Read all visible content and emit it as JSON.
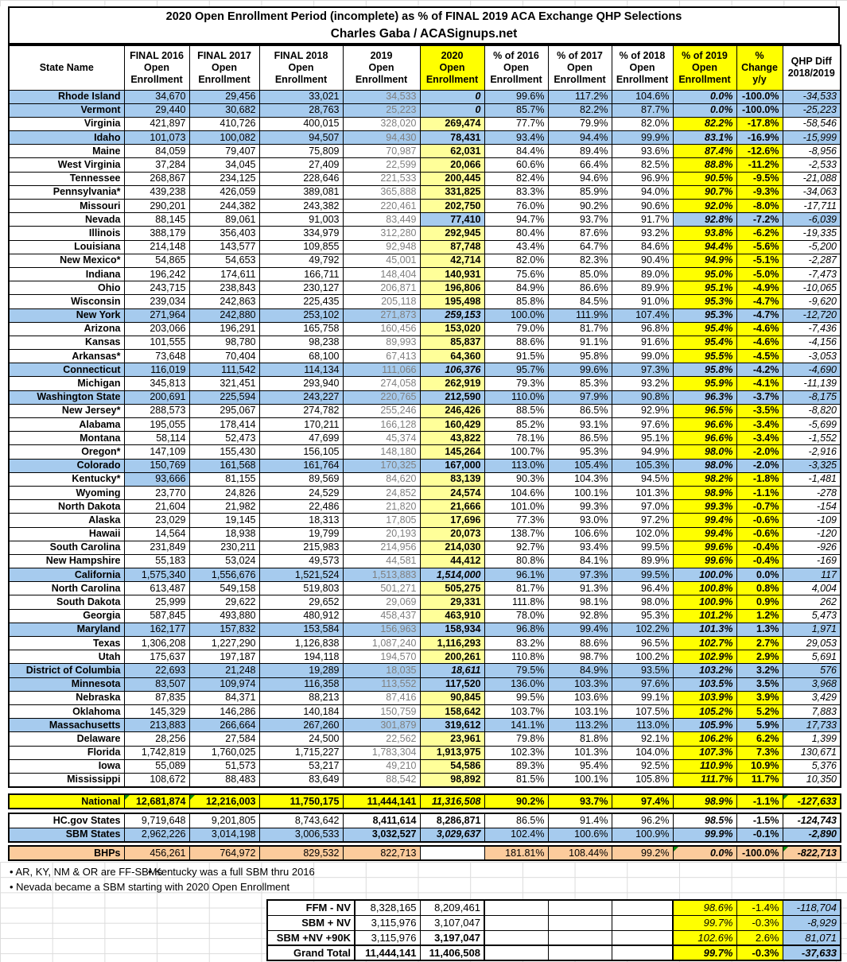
{
  "title": {
    "line1": "2020 Open Enrollment Period (incomplete) as % of FINAL 2019 ACA Exchange QHP Selections",
    "line2": "Charles Gaba / ACASignups.net"
  },
  "colors": {
    "sbm_blue": "#a6cbee",
    "light_yellow": "#ffff99",
    "bright_yellow": "#ffff00",
    "bhp_peach": "#fbcb9c",
    "gray_2019_text": "#7f7f7f",
    "comment_green": "#0a8a0a"
  },
  "chart_data": {
    "type": "table",
    "columns": [
      [
        "State Name"
      ],
      [
        "FINAL 2016",
        "Open",
        "Enrollment"
      ],
      [
        "FINAL 2017",
        "Open",
        "Enrollment"
      ],
      [
        "FINAL 2018",
        "Open",
        "Enrollment"
      ],
      [
        "2019",
        "Open",
        "Enrollment"
      ],
      [
        "2020",
        "Open",
        "Enrollment"
      ],
      [
        "% of 2016",
        "Open",
        "Enrollment"
      ],
      [
        "% of 2017",
        "Open",
        "Enrollment"
      ],
      [
        "% of 2018",
        "Open",
        "Enrollment"
      ],
      [
        "% of 2019",
        "Open",
        "Enrollment"
      ],
      [
        "%",
        "Change",
        "y/y"
      ],
      [
        "QHP Diff",
        "2018/2019"
      ]
    ],
    "yellow_header_indexes": [
      5,
      9,
      10
    ],
    "rows": [
      {
        "s": "Rhode Island",
        "b": 1,
        "i": 1,
        "v": [
          "34,670",
          "29,456",
          "33,021",
          "34,533",
          "0",
          "99.6%",
          "117.2%",
          "104.6%",
          "0.0%",
          "-100.0%",
          "-34,533"
        ]
      },
      {
        "s": "Vermont",
        "b": 1,
        "i": 1,
        "v": [
          "29,440",
          "30,682",
          "28,763",
          "25,223",
          "0",
          "85.7%",
          "82.2%",
          "87.7%",
          "0.0%",
          "-100.0%",
          "-25,223"
        ]
      },
      {
        "s": "Virginia",
        "v": [
          "421,897",
          "410,726",
          "400,015",
          "328,020",
          "269,474",
          "77.7%",
          "79.9%",
          "82.0%",
          "82.2%",
          "-17.8%",
          "-58,546"
        ]
      },
      {
        "s": "Idaho",
        "b": 1,
        "v": [
          "101,073",
          "100,082",
          "94,507",
          "94,430",
          "78,431",
          "93.4%",
          "94.4%",
          "99.9%",
          "83.1%",
          "-16.9%",
          "-15,999"
        ]
      },
      {
        "s": "Maine",
        "v": [
          "84,059",
          "79,407",
          "75,809",
          "70,987",
          "62,031",
          "84.4%",
          "89.4%",
          "93.6%",
          "87.4%",
          "-12.6%",
          "-8,956"
        ]
      },
      {
        "s": "West Virginia",
        "v": [
          "37,284",
          "34,045",
          "27,409",
          "22,599",
          "20,066",
          "60.6%",
          "66.4%",
          "82.5%",
          "88.8%",
          "-11.2%",
          "-2,533"
        ]
      },
      {
        "s": "Tennessee",
        "v": [
          "268,867",
          "234,125",
          "228,646",
          "221,533",
          "200,445",
          "82.4%",
          "94.6%",
          "96.9%",
          "90.5%",
          "-9.5%",
          "-21,088"
        ]
      },
      {
        "s": "Pennsylvania*",
        "v": [
          "439,238",
          "426,059",
          "389,081",
          "365,888",
          "331,825",
          "83.3%",
          "85.9%",
          "94.0%",
          "90.7%",
          "-9.3%",
          "-34,063"
        ]
      },
      {
        "s": "Missouri",
        "v": [
          "290,201",
          "244,382",
          "243,382",
          "220,461",
          "202,750",
          "76.0%",
          "90.2%",
          "90.6%",
          "92.0%",
          "-8.0%",
          "-17,711"
        ]
      },
      {
        "s": "Nevada",
        "nv": 1,
        "v": [
          "88,145",
          "89,061",
          "91,003",
          "83,449",
          "77,410",
          "94.7%",
          "93.7%",
          "91.7%",
          "92.8%",
          "-7.2%",
          "-6,039"
        ]
      },
      {
        "s": "Illinois",
        "v": [
          "388,179",
          "356,403",
          "334,979",
          "312,280",
          "292,945",
          "80.4%",
          "87.6%",
          "93.2%",
          "93.8%",
          "-6.2%",
          "-19,335"
        ]
      },
      {
        "s": "Louisiana",
        "v": [
          "214,148",
          "143,577",
          "109,855",
          "92,948",
          "87,748",
          "43.4%",
          "64.7%",
          "84.6%",
          "94.4%",
          "-5.6%",
          "-5,200"
        ]
      },
      {
        "s": "New Mexico*",
        "v": [
          "54,865",
          "54,653",
          "49,792",
          "45,001",
          "42,714",
          "82.0%",
          "82.3%",
          "90.4%",
          "94.9%",
          "-5.1%",
          "-2,287"
        ]
      },
      {
        "s": "Indiana",
        "v": [
          "196,242",
          "174,611",
          "166,711",
          "148,404",
          "140,931",
          "75.6%",
          "85.0%",
          "89.0%",
          "95.0%",
          "-5.0%",
          "-7,473"
        ]
      },
      {
        "s": "Ohio",
        "v": [
          "243,715",
          "238,843",
          "230,127",
          "206,871",
          "196,806",
          "84.9%",
          "86.6%",
          "89.9%",
          "95.1%",
          "-4.9%",
          "-10,065"
        ]
      },
      {
        "s": "Wisconsin",
        "v": [
          "239,034",
          "242,863",
          "225,435",
          "205,118",
          "195,498",
          "85.8%",
          "84.5%",
          "91.0%",
          "95.3%",
          "-4.7%",
          "-9,620"
        ]
      },
      {
        "s": "New York",
        "b": 1,
        "i": 1,
        "v": [
          "271,964",
          "242,880",
          "253,102",
          "271,873",
          "259,153",
          "100.0%",
          "111.9%",
          "107.4%",
          "95.3%",
          "-4.7%",
          "-12,720"
        ]
      },
      {
        "s": "Arizona",
        "v": [
          "203,066",
          "196,291",
          "165,758",
          "160,456",
          "153,020",
          "79.0%",
          "81.7%",
          "96.8%",
          "95.4%",
          "-4.6%",
          "-7,436"
        ]
      },
      {
        "s": "Kansas",
        "v": [
          "101,555",
          "98,780",
          "98,238",
          "89,993",
          "85,837",
          "88.6%",
          "91.1%",
          "91.6%",
          "95.4%",
          "-4.6%",
          "-4,156"
        ]
      },
      {
        "s": "Arkansas*",
        "v": [
          "73,648",
          "70,404",
          "68,100",
          "67,413",
          "64,360",
          "91.5%",
          "95.8%",
          "99.0%",
          "95.5%",
          "-4.5%",
          "-3,053"
        ]
      },
      {
        "s": "Connecticut",
        "b": 1,
        "i": 1,
        "v": [
          "116,019",
          "111,542",
          "114,134",
          "111,066",
          "106,376",
          "95.7%",
          "99.6%",
          "97.3%",
          "95.8%",
          "-4.2%",
          "-4,690"
        ]
      },
      {
        "s": "Michigan",
        "v": [
          "345,813",
          "321,451",
          "293,940",
          "274,058",
          "262,919",
          "79.3%",
          "85.3%",
          "93.2%",
          "95.9%",
          "-4.1%",
          "-11,139"
        ]
      },
      {
        "s": "Washington State",
        "b": 1,
        "v": [
          "200,691",
          "225,594",
          "243,227",
          "220,765",
          "212,590",
          "110.0%",
          "97.9%",
          "90.8%",
          "96.3%",
          "-3.7%",
          "-8,175"
        ]
      },
      {
        "s": "New Jersey*",
        "v": [
          "288,573",
          "295,067",
          "274,782",
          "255,246",
          "246,426",
          "88.5%",
          "86.5%",
          "92.9%",
          "96.5%",
          "-3.5%",
          "-8,820"
        ]
      },
      {
        "s": "Alabama",
        "v": [
          "195,055",
          "178,414",
          "170,211",
          "166,128",
          "160,429",
          "85.2%",
          "93.1%",
          "97.6%",
          "96.6%",
          "-3.4%",
          "-5,699"
        ]
      },
      {
        "s": "Montana",
        "v": [
          "58,114",
          "52,473",
          "47,699",
          "45,374",
          "43,822",
          "78.1%",
          "86.5%",
          "95.1%",
          "96.6%",
          "-3.4%",
          "-1,552"
        ]
      },
      {
        "s": "Oregon*",
        "v": [
          "147,109",
          "155,430",
          "156,105",
          "148,180",
          "145,264",
          "100.7%",
          "95.3%",
          "94.9%",
          "98.0%",
          "-2.0%",
          "-2,916"
        ]
      },
      {
        "s": "Colorado",
        "b": 1,
        "v": [
          "150,769",
          "161,568",
          "161,764",
          "170,325",
          "167,000",
          "113.0%",
          "105.4%",
          "105.3%",
          "98.0%",
          "-2.0%",
          "-3,325"
        ]
      },
      {
        "s": "Kentucky*",
        "ky": 1,
        "v": [
          "93,666",
          "81,155",
          "89,569",
          "84,620",
          "83,139",
          "90.3%",
          "104.3%",
          "94.5%",
          "98.2%",
          "-1.8%",
          "-1,481"
        ]
      },
      {
        "s": "Wyoming",
        "v": [
          "23,770",
          "24,826",
          "24,529",
          "24,852",
          "24,574",
          "104.6%",
          "100.1%",
          "101.3%",
          "98.9%",
          "-1.1%",
          "-278"
        ]
      },
      {
        "s": "North Dakota",
        "v": [
          "21,604",
          "21,982",
          "22,486",
          "21,820",
          "21,666",
          "101.0%",
          "99.3%",
          "97.0%",
          "99.3%",
          "-0.7%",
          "-154"
        ]
      },
      {
        "s": "Alaska",
        "v": [
          "23,029",
          "19,145",
          "18,313",
          "17,805",
          "17,696",
          "77.3%",
          "93.0%",
          "97.2%",
          "99.4%",
          "-0.6%",
          "-109"
        ]
      },
      {
        "s": "Hawaii",
        "v": [
          "14,564",
          "18,938",
          "19,799",
          "20,193",
          "20,073",
          "138.7%",
          "106.6%",
          "102.0%",
          "99.4%",
          "-0.6%",
          "-120"
        ]
      },
      {
        "s": "South Carolina",
        "v": [
          "231,849",
          "230,211",
          "215,983",
          "214,956",
          "214,030",
          "92.7%",
          "93.4%",
          "99.5%",
          "99.6%",
          "-0.4%",
          "-926"
        ]
      },
      {
        "s": "New Hampshire",
        "v": [
          "55,183",
          "53,024",
          "49,573",
          "44,581",
          "44,412",
          "80.8%",
          "84.1%",
          "89.9%",
          "99.6%",
          "-0.4%",
          "-169"
        ]
      },
      {
        "s": "California",
        "b": 1,
        "i": 1,
        "v": [
          "1,575,340",
          "1,556,676",
          "1,521,524",
          "1,513,883",
          "1,514,000",
          "96.1%",
          "97.3%",
          "99.5%",
          "100.0%",
          "0.0%",
          "117"
        ]
      },
      {
        "s": "North Carolina",
        "v": [
          "613,487",
          "549,158",
          "519,803",
          "501,271",
          "505,275",
          "81.7%",
          "91.3%",
          "96.4%",
          "100.8%",
          "0.8%",
          "4,004"
        ]
      },
      {
        "s": "South Dakota",
        "v": [
          "25,999",
          "29,622",
          "29,652",
          "29,069",
          "29,331",
          "111.8%",
          "98.1%",
          "98.0%",
          "100.9%",
          "0.9%",
          "262"
        ]
      },
      {
        "s": "Georgia",
        "v": [
          "587,845",
          "493,880",
          "480,912",
          "458,437",
          "463,910",
          "78.0%",
          "92.8%",
          "95.3%",
          "101.2%",
          "1.2%",
          "5,473"
        ]
      },
      {
        "s": "Maryland",
        "b": 1,
        "v": [
          "162,177",
          "157,832",
          "153,584",
          "156,963",
          "158,934",
          "96.8%",
          "99.4%",
          "102.2%",
          "101.3%",
          "1.3%",
          "1,971"
        ]
      },
      {
        "s": "Texas",
        "v": [
          "1,306,208",
          "1,227,290",
          "1,126,838",
          "1,087,240",
          "1,116,293",
          "83.2%",
          "88.6%",
          "96.5%",
          "102.7%",
          "2.7%",
          "29,053"
        ]
      },
      {
        "s": "Utah",
        "v": [
          "175,637",
          "197,187",
          "194,118",
          "194,570",
          "200,261",
          "110.8%",
          "98.7%",
          "100.2%",
          "102.9%",
          "2.9%",
          "5,691"
        ]
      },
      {
        "s": "District of Columbia",
        "b": 1,
        "i": 1,
        "v": [
          "22,693",
          "21,248",
          "19,289",
          "18,035",
          "18,611",
          "79.5%",
          "84.9%",
          "93.5%",
          "103.2%",
          "3.2%",
          "576"
        ]
      },
      {
        "s": "Minnesota",
        "b": 1,
        "v": [
          "83,507",
          "109,974",
          "116,358",
          "113,552",
          "117,520",
          "136.0%",
          "103.3%",
          "97.6%",
          "103.5%",
          "3.5%",
          "3,968"
        ]
      },
      {
        "s": "Nebraska",
        "v": [
          "87,835",
          "84,371",
          "88,213",
          "87,416",
          "90,845",
          "99.5%",
          "103.6%",
          "99.1%",
          "103.9%",
          "3.9%",
          "3,429"
        ]
      },
      {
        "s": "Oklahoma",
        "v": [
          "145,329",
          "146,286",
          "140,184",
          "150,759",
          "158,642",
          "103.7%",
          "103.1%",
          "107.5%",
          "105.2%",
          "5.2%",
          "7,883"
        ]
      },
      {
        "s": "Massachusetts",
        "b": 1,
        "v": [
          "213,883",
          "266,664",
          "267,260",
          "301,879",
          "319,612",
          "141.1%",
          "113.2%",
          "113.0%",
          "105.9%",
          "5.9%",
          "17,733"
        ]
      },
      {
        "s": "Delaware",
        "v": [
          "28,256",
          "27,584",
          "24,500",
          "22,562",
          "23,961",
          "79.8%",
          "81.8%",
          "92.1%",
          "106.2%",
          "6.2%",
          "1,399"
        ]
      },
      {
        "s": "Florida",
        "v": [
          "1,742,819",
          "1,760,025",
          "1,715,227",
          "1,783,304",
          "1,913,975",
          "102.3%",
          "101.3%",
          "104.0%",
          "107.3%",
          "7.3%",
          "130,671"
        ]
      },
      {
        "s": "Iowa",
        "v": [
          "55,089",
          "51,573",
          "53,217",
          "49,210",
          "54,586",
          "89.3%",
          "95.4%",
          "92.5%",
          "110.9%",
          "10.9%",
          "5,376"
        ]
      },
      {
        "s": "Mississippi",
        "v": [
          "108,672",
          "88,483",
          "83,649",
          "88,542",
          "98,892",
          "81.5%",
          "100.1%",
          "105.8%",
          "111.7%",
          "11.7%",
          "10,350"
        ]
      }
    ],
    "summary": [
      {
        "label": "National",
        "cls": "national",
        "tri": [
          0,
          1,
          10
        ],
        "v": [
          "12,681,874",
          "12,216,003",
          "11,750,175",
          "11,444,141",
          "11,316,508",
          "90.2%",
          "93.7%",
          "97.4%",
          "98.9%",
          "-1.1%",
          "-127,633"
        ]
      },
      {
        "label": "HC.gov States",
        "cls": "hcgov",
        "v": [
          "9,719,648",
          "9,201,805",
          "8,743,642",
          "8,411,614",
          "8,286,871",
          "86.5%",
          "91.4%",
          "96.2%",
          "98.5%",
          "-1.5%",
          "-124,743"
        ]
      },
      {
        "label": "SBM States",
        "cls": "sbm",
        "v": [
          "2,962,226",
          "3,014,198",
          "3,006,533",
          "3,032,527",
          "3,029,637",
          "102.4%",
          "100.6%",
          "100.9%",
          "99.9%",
          "-0.1%",
          "-2,890"
        ]
      },
      {
        "label": "BHPs",
        "cls": "bhp",
        "tri": [
          8,
          10
        ],
        "v": [
          "456,261",
          "764,972",
          "829,532",
          "822,713",
          "",
          "181.81%",
          "108.44%",
          "99.2%",
          "0.0%",
          "-100.0%",
          "-822,713"
        ]
      }
    ],
    "footnotes": [
      "• AR, KY, NM & OR are FF-SBMs",
      "• Kentucky was a full SBM thru 2016",
      "• Nevada became a SBM starting with 2020 Open Enrollment"
    ],
    "bottom_rows": [
      {
        "label": "FFM - NV",
        "v1": "8,328,165",
        "v2": "8,209,461",
        "p": "98.6%",
        "c": "-1.4%",
        "q": "-118,704"
      },
      {
        "label": "SBM + NV",
        "v1": "3,115,976",
        "v2": "3,107,047",
        "p": "99.7%",
        "c": "-0.3%",
        "q": "-8,929"
      },
      {
        "label": "SBM +NV +90K",
        "v1": "3,115,976",
        "v2": "3,197,047",
        "b2": true,
        "p": "102.6%",
        "c": "2.6%",
        "q": "81,071"
      },
      {
        "label": "Grand Total",
        "v1": "11,444,141",
        "v2": "11,406,508",
        "gt": true,
        "p": "99.7%",
        "c": "-0.3%",
        "q": "-37,633"
      }
    ]
  }
}
